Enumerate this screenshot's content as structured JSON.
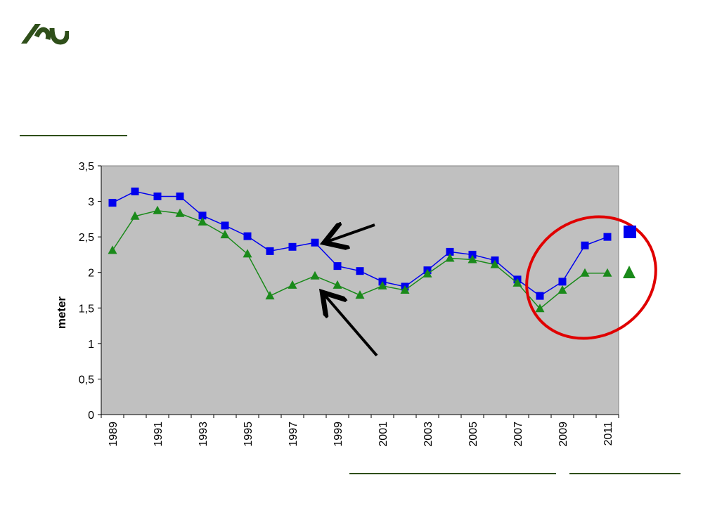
{
  "logo": {
    "icon": "university-logo-icon",
    "color": "#2f4f1a"
  },
  "chart_data": {
    "type": "line",
    "ylabel": "meter",
    "ylim": [
      0,
      3.5
    ],
    "yticks": [
      "0",
      "0,5",
      "1",
      "1,5",
      "2",
      "2,5",
      "3",
      "3,5"
    ],
    "ytick_values": [
      0,
      0.5,
      1,
      1.5,
      2,
      2.5,
      3,
      3.5
    ],
    "x": [
      1989,
      1990,
      1991,
      1992,
      1993,
      1994,
      1995,
      1996,
      1997,
      1998,
      1999,
      2000,
      2001,
      2002,
      2003,
      2004,
      2005,
      2006,
      2007,
      2008,
      2009,
      2010,
      2011
    ],
    "xtick_labels": [
      "1989",
      "1991",
      "1993",
      "1995",
      "1997",
      "1999",
      "2001",
      "2003",
      "2005",
      "2007",
      "2009",
      "2011"
    ],
    "series": [
      {
        "marker": "square",
        "color": "#0000ee",
        "values": [
          2.98,
          3.14,
          3.07,
          3.07,
          2.8,
          2.66,
          2.51,
          2.3,
          2.36,
          2.42,
          2.09,
          2.02,
          1.87,
          1.8,
          2.03,
          2.29,
          2.25,
          2.17,
          1.9,
          1.67,
          1.87,
          2.38,
          2.5
        ]
      },
      {
        "marker": "triangle",
        "color": "#1a8a1a",
        "values": [
          2.31,
          2.79,
          2.87,
          2.83,
          2.71,
          2.53,
          2.26,
          1.67,
          1.82,
          1.95,
          1.82,
          1.68,
          1.81,
          1.75,
          1.98,
          2.2,
          2.18,
          2.11,
          1.85,
          1.49,
          1.75,
          1.99,
          1.99
        ]
      }
    ],
    "plot_background": "#c0c0c0",
    "annotations": [
      {
        "kind": "arrow",
        "target": "square series 1998",
        "color": "#000000"
      },
      {
        "kind": "arrow",
        "target": "triangle series 1998",
        "color": "#000000"
      },
      {
        "kind": "ellipse",
        "target": "2008-2011",
        "color": "#e00000"
      }
    ]
  }
}
